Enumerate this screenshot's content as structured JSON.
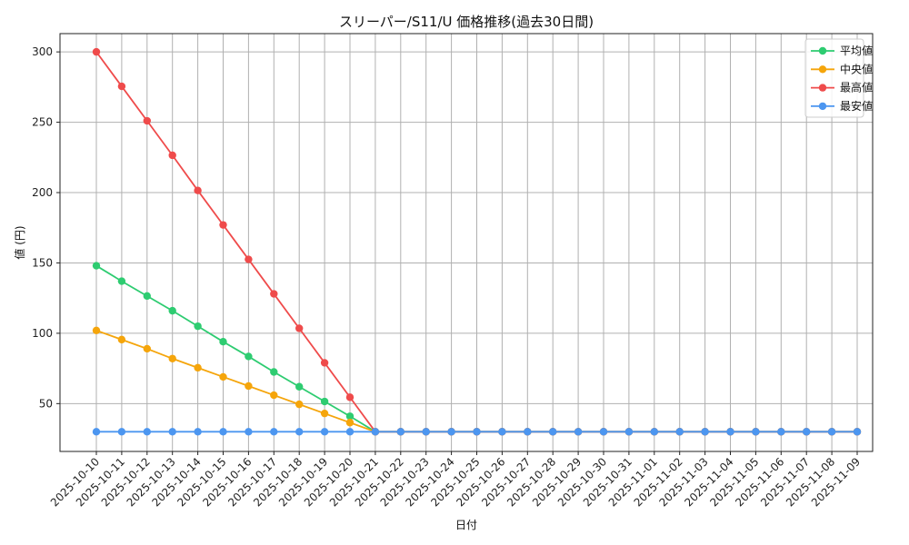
{
  "chart_data": {
    "type": "line",
    "title": "スリーパー/S11/U 価格推移(過去30日間)",
    "xlabel": "日付",
    "ylabel": "値 (円)",
    "grid": true,
    "legend_position": "top-right",
    "ylim": [
      16,
      313
    ],
    "yticks": [
      50,
      100,
      150,
      200,
      250,
      300
    ],
    "x": [
      "2025-10-10",
      "2025-10-11",
      "2025-10-12",
      "2025-10-13",
      "2025-10-14",
      "2025-10-15",
      "2025-10-16",
      "2025-10-17",
      "2025-10-18",
      "2025-10-19",
      "2025-10-20",
      "2025-10-21",
      "2025-10-22",
      "2025-10-23",
      "2025-10-24",
      "2025-10-25",
      "2025-10-26",
      "2025-10-27",
      "2025-10-28",
      "2025-10-29",
      "2025-10-30",
      "2025-10-31",
      "2025-11-01",
      "2025-11-02",
      "2025-11-03",
      "2025-11-04",
      "2025-11-05",
      "2025-11-06",
      "2025-11-07",
      "2025-11-08",
      "2025-11-09"
    ],
    "series": [
      {
        "name": "平均値",
        "color": "#2ecc71",
        "values": [
          148,
          137,
          126.5,
          116,
          105,
          94,
          83.5,
          72.5,
          62,
          51.5,
          41,
          30,
          30,
          30,
          30,
          30,
          30,
          30,
          30,
          30,
          30,
          30,
          30,
          30,
          30,
          30,
          30,
          30,
          30,
          30,
          30
        ]
      },
      {
        "name": "中央値",
        "color": "#f5a50b",
        "values": [
          102,
          95.5,
          89,
          82,
          75.5,
          69,
          62.5,
          56,
          49.5,
          43,
          36.5,
          30,
          30,
          30,
          30,
          30,
          30,
          30,
          30,
          30,
          30,
          30,
          30,
          30,
          30,
          30,
          30,
          30,
          30,
          30,
          30
        ]
      },
      {
        "name": "最高値",
        "color": "#ef4b4b",
        "values": [
          300,
          275.5,
          251,
          226.5,
          201.5,
          177,
          152.5,
          128,
          103.5,
          79,
          54.5,
          30,
          30,
          30,
          30,
          30,
          30,
          30,
          30,
          30,
          30,
          30,
          30,
          30,
          30,
          30,
          30,
          30,
          30,
          30,
          30
        ]
      },
      {
        "name": "最安値",
        "color": "#4c96f0",
        "values": [
          30,
          30,
          30,
          30,
          30,
          30,
          30,
          30,
          30,
          30,
          30,
          30,
          30,
          30,
          30,
          30,
          30,
          30,
          30,
          30,
          30,
          30,
          30,
          30,
          30,
          30,
          30,
          30,
          30,
          30,
          30
        ]
      }
    ]
  }
}
